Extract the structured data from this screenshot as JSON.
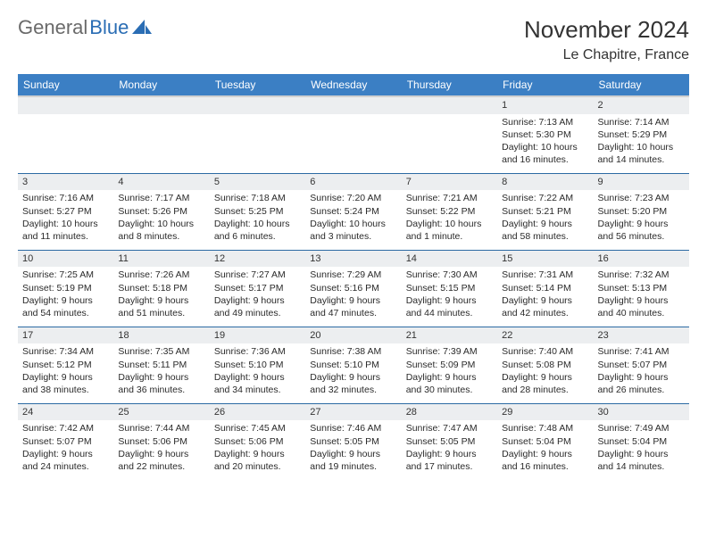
{
  "logo": {
    "text1": "General",
    "text2": "Blue"
  },
  "title": "November 2024",
  "location": "Le Chapitre, France",
  "colors": {
    "header_bg": "#3b7fc4",
    "header_text": "#ffffff",
    "daynum_bg": "#eceef0",
    "row_border": "#2c6aa3",
    "text": "#2a2a2a",
    "logo_gray": "#6a6a6a",
    "logo_blue": "#2a6db4"
  },
  "weekdays": [
    "Sunday",
    "Monday",
    "Tuesday",
    "Wednesday",
    "Thursday",
    "Friday",
    "Saturday"
  ],
  "weeks": [
    [
      null,
      null,
      null,
      null,
      null,
      {
        "n": "1",
        "sunrise": "7:13 AM",
        "sunset": "5:30 PM",
        "daylight": "10 hours and 16 minutes."
      },
      {
        "n": "2",
        "sunrise": "7:14 AM",
        "sunset": "5:29 PM",
        "daylight": "10 hours and 14 minutes."
      }
    ],
    [
      {
        "n": "3",
        "sunrise": "7:16 AM",
        "sunset": "5:27 PM",
        "daylight": "10 hours and 11 minutes."
      },
      {
        "n": "4",
        "sunrise": "7:17 AM",
        "sunset": "5:26 PM",
        "daylight": "10 hours and 8 minutes."
      },
      {
        "n": "5",
        "sunrise": "7:18 AM",
        "sunset": "5:25 PM",
        "daylight": "10 hours and 6 minutes."
      },
      {
        "n": "6",
        "sunrise": "7:20 AM",
        "sunset": "5:24 PM",
        "daylight": "10 hours and 3 minutes."
      },
      {
        "n": "7",
        "sunrise": "7:21 AM",
        "sunset": "5:22 PM",
        "daylight": "10 hours and 1 minute."
      },
      {
        "n": "8",
        "sunrise": "7:22 AM",
        "sunset": "5:21 PM",
        "daylight": "9 hours and 58 minutes."
      },
      {
        "n": "9",
        "sunrise": "7:23 AM",
        "sunset": "5:20 PM",
        "daylight": "9 hours and 56 minutes."
      }
    ],
    [
      {
        "n": "10",
        "sunrise": "7:25 AM",
        "sunset": "5:19 PM",
        "daylight": "9 hours and 54 minutes."
      },
      {
        "n": "11",
        "sunrise": "7:26 AM",
        "sunset": "5:18 PM",
        "daylight": "9 hours and 51 minutes."
      },
      {
        "n": "12",
        "sunrise": "7:27 AM",
        "sunset": "5:17 PM",
        "daylight": "9 hours and 49 minutes."
      },
      {
        "n": "13",
        "sunrise": "7:29 AM",
        "sunset": "5:16 PM",
        "daylight": "9 hours and 47 minutes."
      },
      {
        "n": "14",
        "sunrise": "7:30 AM",
        "sunset": "5:15 PM",
        "daylight": "9 hours and 44 minutes."
      },
      {
        "n": "15",
        "sunrise": "7:31 AM",
        "sunset": "5:14 PM",
        "daylight": "9 hours and 42 minutes."
      },
      {
        "n": "16",
        "sunrise": "7:32 AM",
        "sunset": "5:13 PM",
        "daylight": "9 hours and 40 minutes."
      }
    ],
    [
      {
        "n": "17",
        "sunrise": "7:34 AM",
        "sunset": "5:12 PM",
        "daylight": "9 hours and 38 minutes."
      },
      {
        "n": "18",
        "sunrise": "7:35 AM",
        "sunset": "5:11 PM",
        "daylight": "9 hours and 36 minutes."
      },
      {
        "n": "19",
        "sunrise": "7:36 AM",
        "sunset": "5:10 PM",
        "daylight": "9 hours and 34 minutes."
      },
      {
        "n": "20",
        "sunrise": "7:38 AM",
        "sunset": "5:10 PM",
        "daylight": "9 hours and 32 minutes."
      },
      {
        "n": "21",
        "sunrise": "7:39 AM",
        "sunset": "5:09 PM",
        "daylight": "9 hours and 30 minutes."
      },
      {
        "n": "22",
        "sunrise": "7:40 AM",
        "sunset": "5:08 PM",
        "daylight": "9 hours and 28 minutes."
      },
      {
        "n": "23",
        "sunrise": "7:41 AM",
        "sunset": "5:07 PM",
        "daylight": "9 hours and 26 minutes."
      }
    ],
    [
      {
        "n": "24",
        "sunrise": "7:42 AM",
        "sunset": "5:07 PM",
        "daylight": "9 hours and 24 minutes."
      },
      {
        "n": "25",
        "sunrise": "7:44 AM",
        "sunset": "5:06 PM",
        "daylight": "9 hours and 22 minutes."
      },
      {
        "n": "26",
        "sunrise": "7:45 AM",
        "sunset": "5:06 PM",
        "daylight": "9 hours and 20 minutes."
      },
      {
        "n": "27",
        "sunrise": "7:46 AM",
        "sunset": "5:05 PM",
        "daylight": "9 hours and 19 minutes."
      },
      {
        "n": "28",
        "sunrise": "7:47 AM",
        "sunset": "5:05 PM",
        "daylight": "9 hours and 17 minutes."
      },
      {
        "n": "29",
        "sunrise": "7:48 AM",
        "sunset": "5:04 PM",
        "daylight": "9 hours and 16 minutes."
      },
      {
        "n": "30",
        "sunrise": "7:49 AM",
        "sunset": "5:04 PM",
        "daylight": "9 hours and 14 minutes."
      }
    ]
  ],
  "labels": {
    "sunrise": "Sunrise: ",
    "sunset": "Sunset: ",
    "daylight": "Daylight: "
  }
}
